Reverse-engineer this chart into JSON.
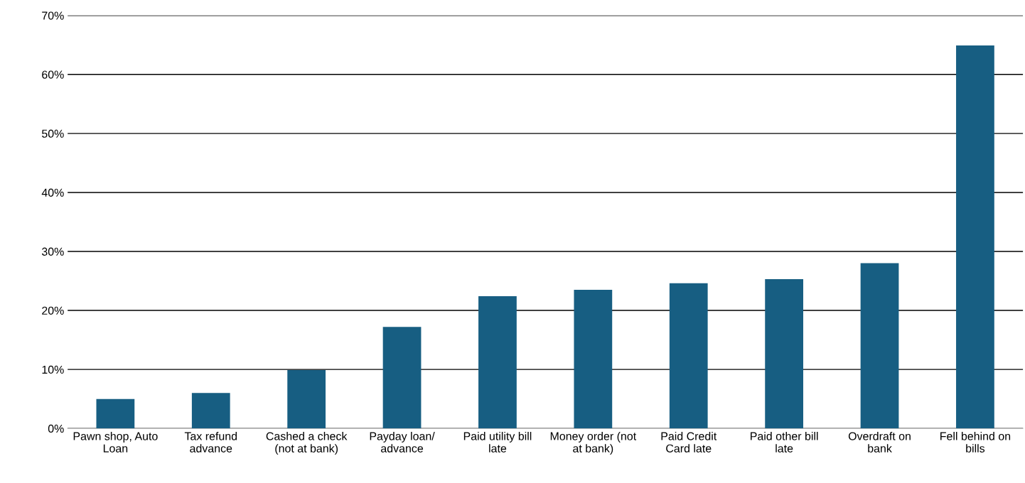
{
  "chart_data": {
    "type": "bar",
    "categories": [
      "Pawn shop, Auto\nLoan",
      "Tax refund\nadvance",
      "Cashed a check\n(not at bank)",
      "Payday loan/\nadvance",
      "Paid utility bill\nlate",
      "Money order (not\nat bank)",
      "Paid Credit\nCard late",
      "Paid other bill\nlate",
      "Overdraft on\nbank",
      "Fell behind on\nbills"
    ],
    "values": [
      5.0,
      6.0,
      9.9,
      17.2,
      22.4,
      23.5,
      24.6,
      25.3,
      28.0,
      64.9
    ],
    "color": "#175e82",
    "ylim": [
      0,
      70
    ],
    "yticks": [
      {
        "value": 0,
        "label": "0%"
      },
      {
        "value": 10,
        "label": "10%"
      },
      {
        "value": 20,
        "label": "20%"
      },
      {
        "value": 30,
        "label": "30%"
      },
      {
        "value": 40,
        "label": "40%"
      },
      {
        "value": 50,
        "label": "50%"
      },
      {
        "value": 60,
        "label": "60%"
      },
      {
        "value": 70,
        "label": "70%"
      }
    ],
    "grid": "y",
    "legend": false
  }
}
